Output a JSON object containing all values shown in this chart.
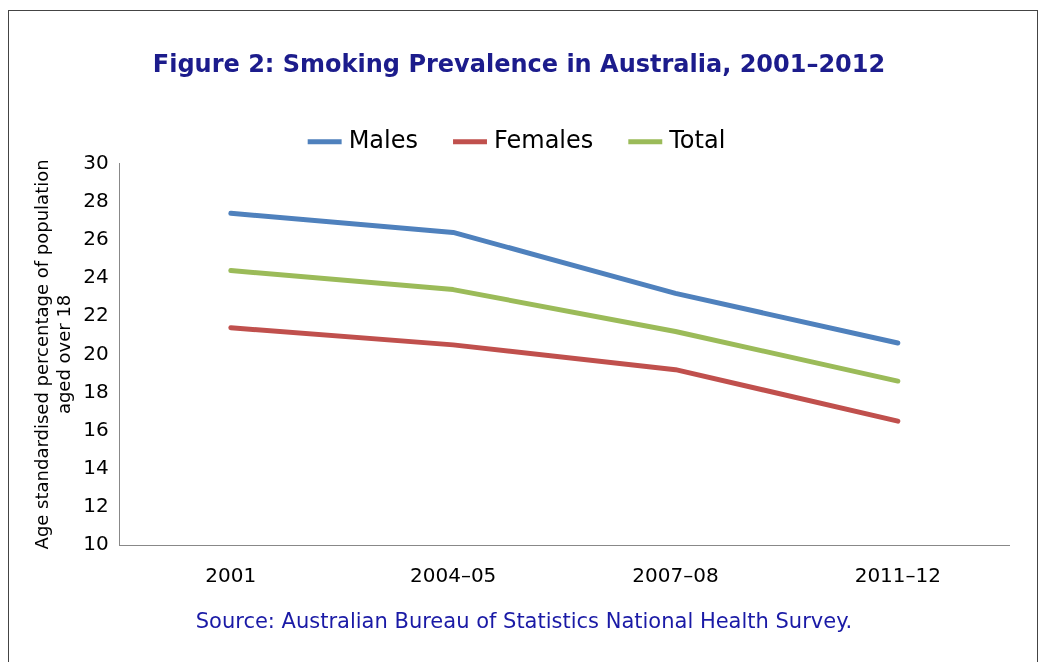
{
  "chart_data": {
    "type": "line",
    "title": "Figure 2: Smoking Prevalence in Australia, 2001–2012",
    "ylabel": "Age standardised percentage of population aged over 18",
    "categories": [
      "2001",
      "2004–05",
      "2007–08",
      "2011–12"
    ],
    "series": [
      {
        "name": "Males",
        "color": "#4f81bd",
        "values": [
          27.4,
          26.4,
          23.2,
          20.6
        ]
      },
      {
        "name": "Females",
        "color": "#c0504d",
        "values": [
          21.4,
          20.5,
          19.2,
          16.5
        ]
      },
      {
        "name": "Total",
        "color": "#9bbb59",
        "values": [
          24.4,
          23.4,
          21.2,
          18.6
        ]
      }
    ],
    "ylim": [
      10,
      30
    ],
    "yticks": [
      10,
      12,
      14,
      16,
      18,
      20,
      22,
      24,
      26,
      28,
      30
    ],
    "grid": false,
    "legend": "top",
    "marker": "none",
    "line_style": "solid",
    "annotations": [
      "Source: Australian Bureau of Statistics National Health Survey."
    ]
  }
}
